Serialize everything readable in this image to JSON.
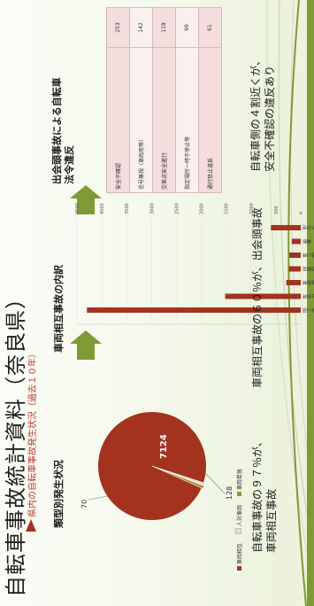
{
  "slide": {
    "title": "自転車事故統計資料（奈良県）",
    "subtitle": "県内の自転車事故発生状況（過去１０年）",
    "left_heading": "類型別発生状況",
    "middle_heading": "車両相互事故の内訳",
    "right_heading_line1": "出会頭事故による自転車",
    "right_heading_line2": "法令違反",
    "left_caption_line1": "自転車事故の９７％が、",
    "left_caption_line2": "車両相互事故",
    "middle_caption": "車両相互事故の６０％が、出会頭事故",
    "right_caption_line1": "自転車側の４割近くが、",
    "right_caption_line2": "安全不確認の違反あり"
  },
  "chart_data": [
    {
      "type": "pie",
      "labels": [
        "車両相互",
        "人対車両",
        "車両単独"
      ],
      "values": [
        7124,
        128,
        70
      ],
      "data_labels": [
        "7124",
        "128",
        "70"
      ],
      "colors": [
        "#a3331f",
        "#e9e0c6",
        "#a8873a"
      ]
    },
    {
      "type": "bar",
      "orientation": "horizontal",
      "categories": [
        "出会い頭",
        "右左折時",
        "追越追抜時",
        "正面衝突",
        "すれ違い時",
        "横断",
        "その他"
      ],
      "values": [
        4300,
        1520,
        290,
        240,
        230,
        180,
        600
      ],
      "xlim": [
        0,
        4500
      ],
      "xticks": [
        "0",
        "500",
        "1000",
        "1500",
        "2000",
        "2500",
        "3000",
        "3500",
        "4000",
        "4500"
      ],
      "bar_color": "#a3331f",
      "highlight": "出会い頭"
    }
  ],
  "violations": [
    {
      "label": "安全不確認",
      "count": "253"
    },
    {
      "label": "信号無視（車両用等）",
      "count": "142"
    },
    {
      "label": "交差点安全進行",
      "count": "119"
    },
    {
      "label": "指定場所一時不停止等",
      "count": "99"
    },
    {
      "label": "通行禁止違反",
      "count": "61"
    }
  ],
  "colors": {
    "accent": "#a3331f",
    "arrow": "#7d9a35",
    "highlight_ring": "#d21e1e"
  }
}
